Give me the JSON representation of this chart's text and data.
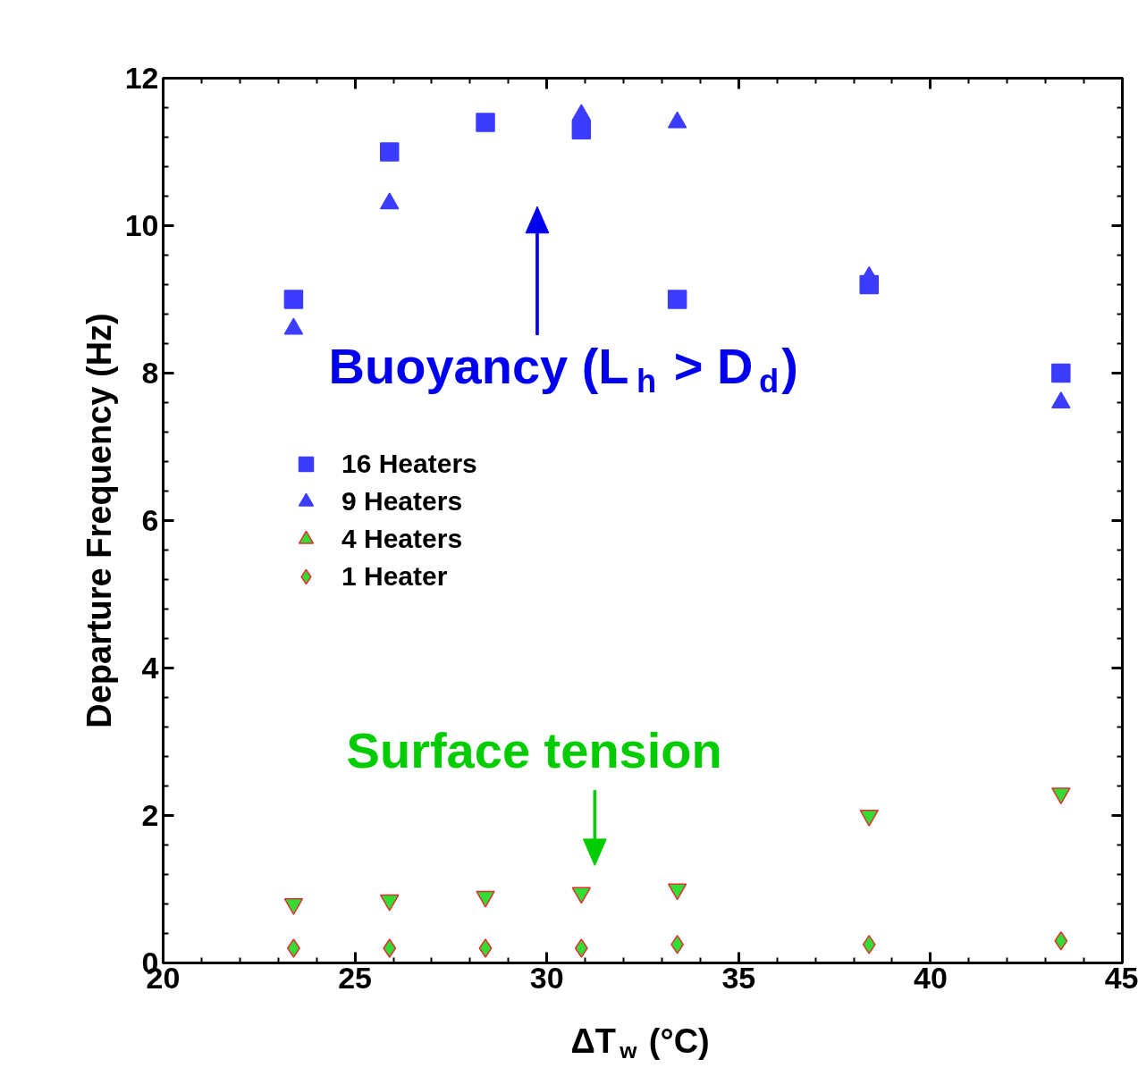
{
  "chart_data": {
    "type": "scatter",
    "xlabel": "ΔT$_{w}$ (°C)",
    "ylabel": "Departure Frequency (Hz)",
    "x": [
      23.4,
      25.9,
      28.4,
      30.9,
      33.4,
      38.4,
      43.4
    ],
    "xlim": [
      20,
      45
    ],
    "xticks": [
      20,
      25,
      30,
      35,
      40,
      45
    ],
    "ylim": [
      0,
      12
    ],
    "yticks": [
      0,
      2,
      4,
      6,
      8,
      10,
      12
    ],
    "legend": "left",
    "series": [
      {
        "name": "16 Heaters",
        "color": "#3c3cff",
        "marker": "square",
        "values": [
          9.0,
          11.0,
          11.4,
          11.3,
          9.0,
          9.2,
          8.0
        ]
      },
      {
        "name": "9 Heaters",
        "color": "#3c3cff",
        "marker": "triangle",
        "values": [
          8.6,
          10.3,
          null,
          11.5,
          11.4,
          9.3,
          7.6
        ]
      },
      {
        "name": "4 Heaters",
        "color": "#33dd33",
        "marker": "triangle",
        "values": [
          0.8,
          0.85,
          0.9,
          0.95,
          1.0,
          2.0,
          2.3
        ]
      },
      {
        "name": "1 Heater",
        "color": "#33dd33",
        "marker": "diamond",
        "values": [
          0.2,
          0.2,
          0.2,
          0.2,
          0.25,
          0.25,
          0.3
        ]
      }
    ],
    "annotations": [
      "Buoyancy (L$_{h}$ > D$_{d}$)",
      "Surface tension"
    ]
  }
}
